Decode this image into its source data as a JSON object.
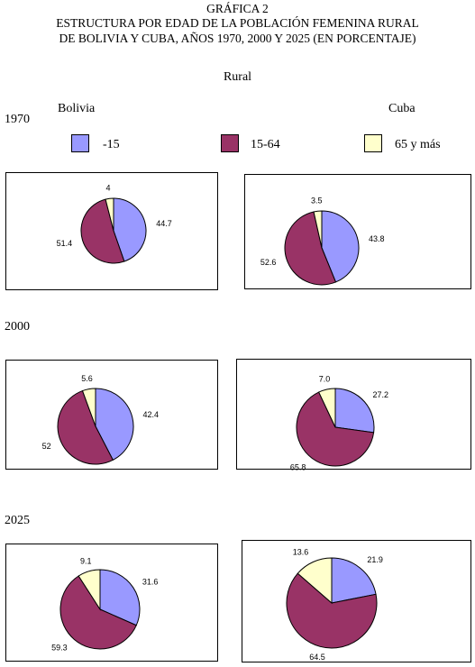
{
  "header": {
    "line1": "GRÁFICA 2",
    "line2": "ESTRUCTURA POR EDAD DE LA POBLACIÓN FEMENINA RURAL",
    "line3": "DE BOLIVIA Y CUBA, AÑOS 1970, 2000 Y 2025 (EN PORCENTAJE)",
    "subtitle": "Rural"
  },
  "countries": [
    "Bolivia",
    "Cuba"
  ],
  "years": [
    "1970",
    "2000",
    "2025"
  ],
  "legend": [
    {
      "name": "-15",
      "color": "#9999ff"
    },
    {
      "name": "15-64",
      "color": "#993366"
    },
    {
      "name": "65 y más",
      "color": "#ffffcc"
    }
  ],
  "chart_data": [
    {
      "type": "pie",
      "country": "Bolivia",
      "year": "1970",
      "categories": [
        "-15",
        "15-64",
        "65 y más"
      ],
      "values": [
        44.7,
        51.4,
        4
      ],
      "labels": [
        "44.7",
        "51.4",
        "4"
      ]
    },
    {
      "type": "pie",
      "country": "Cuba",
      "year": "1970",
      "categories": [
        "-15",
        "15-64",
        "65 y más"
      ],
      "values": [
        43.8,
        52.6,
        3.5
      ],
      "labels": [
        "43.8",
        "52.6",
        "3.5"
      ]
    },
    {
      "type": "pie",
      "country": "Bolivia",
      "year": "2000",
      "categories": [
        "-15",
        "15-64",
        "65 y más"
      ],
      "values": [
        42.4,
        52,
        5.6
      ],
      "labels": [
        "42.4",
        "52",
        "5.6"
      ]
    },
    {
      "type": "pie",
      "country": "Cuba",
      "year": "2000",
      "categories": [
        "-15",
        "15-64",
        "65 y más"
      ],
      "values": [
        27.2,
        65.8,
        7.0
      ],
      "labels": [
        "27.2",
        "65.8",
        "7.0"
      ]
    },
    {
      "type": "pie",
      "country": "Bolivia",
      "year": "2025",
      "categories": [
        "-15",
        "15-64",
        "65 y más"
      ],
      "values": [
        31.6,
        59.3,
        9.1
      ],
      "labels": [
        "31.6",
        "59.3",
        "9.1"
      ]
    },
    {
      "type": "pie",
      "country": "Cuba",
      "year": "2025",
      "categories": [
        "-15",
        "15-64",
        "65 y más"
      ],
      "values": [
        21.9,
        64.5,
        13.6
      ],
      "labels": [
        "21.9",
        "64.5",
        "13.6"
      ]
    }
  ]
}
